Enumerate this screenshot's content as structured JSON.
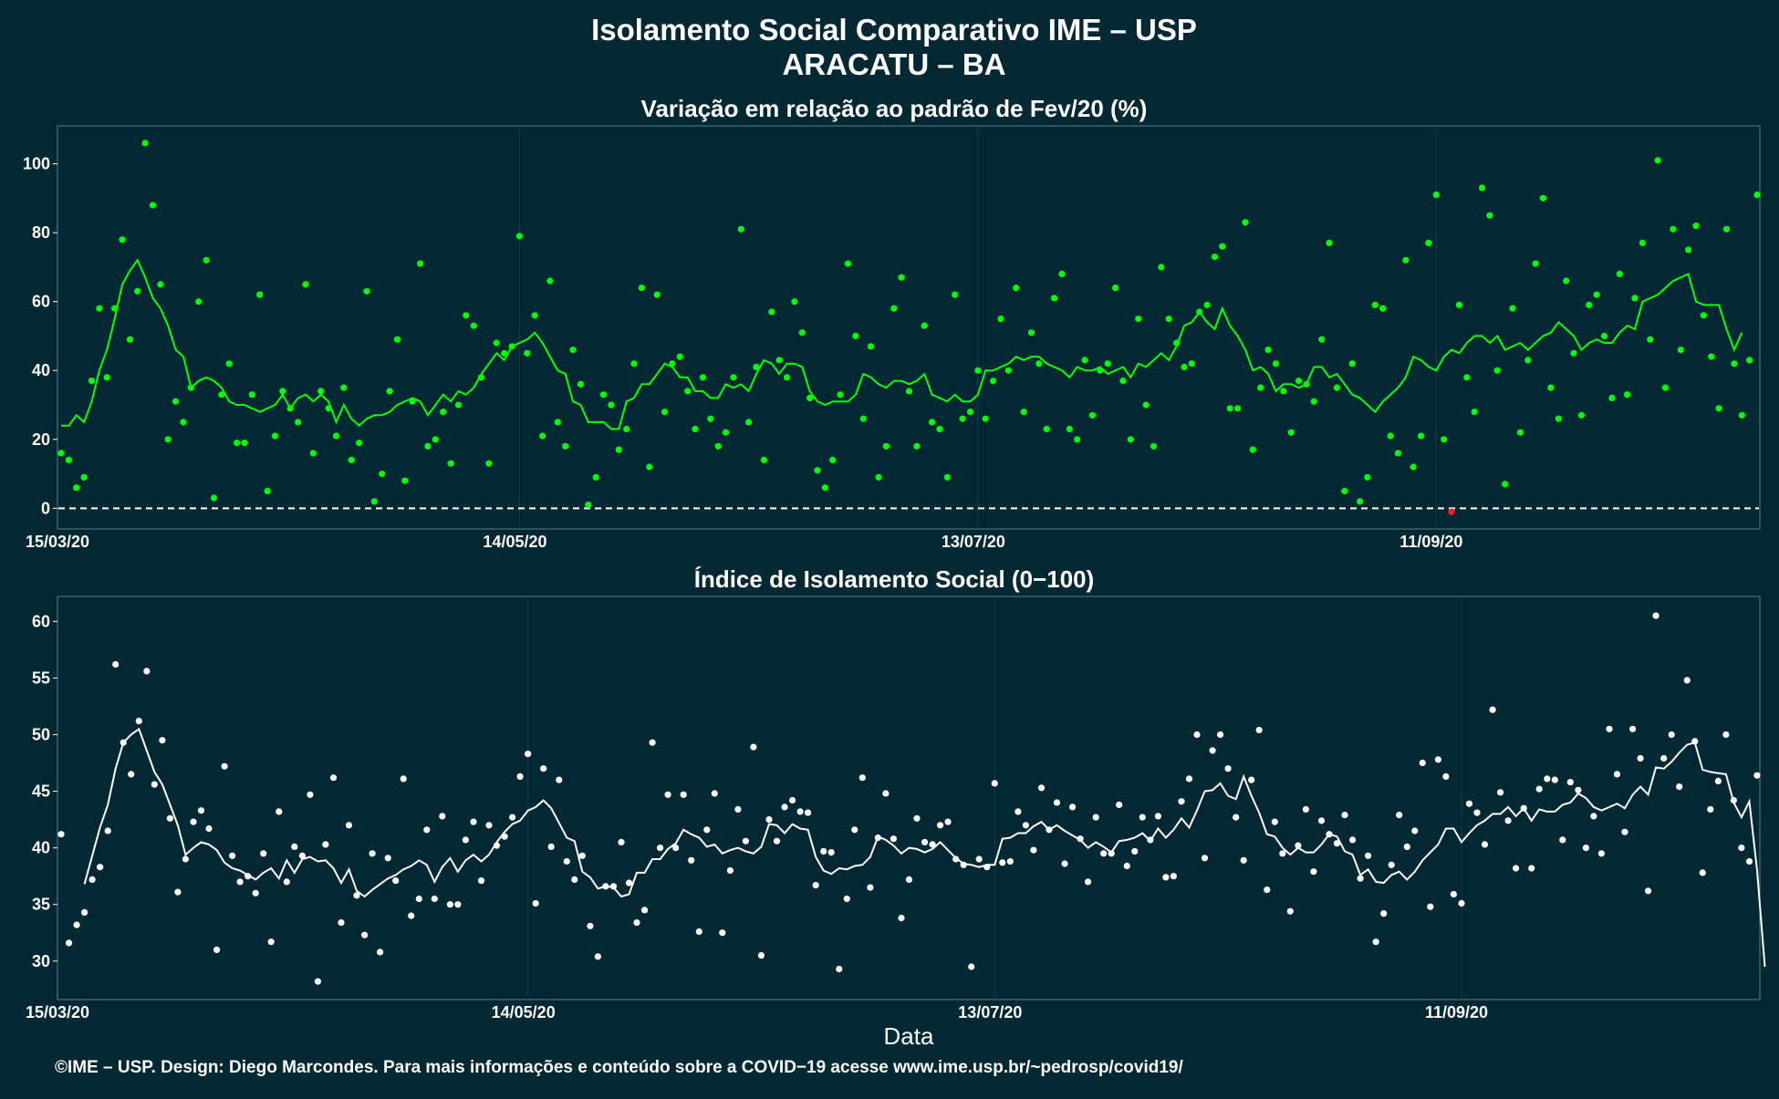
{
  "title_line1": "Isolamento Social Comparativo IME – USP",
  "title_line2": "ARACATU – BA",
  "xlabel": "Data",
  "footer": "©IME – USP. Design: Diego Marcondes. Para mais informações e conteúdo sobre a COVID−19 acesse www.ime.usp.br/~pedrosp/covid19/",
  "colors": {
    "background": "#022833",
    "top_series": "#00ff00",
    "top_negative": "#ff2020",
    "bottom_series": "#ffffff"
  },
  "chart_data": [
    {
      "type": "scatter",
      "title": "Variação em relação ao padrão de Fev/20 (%)",
      "x_start": "15/03/20",
      "x_end": "16/10/20",
      "x_ticks": [
        "15/03/20",
        "14/05/20",
        "13/07/20",
        "11/09/20"
      ],
      "y_ticks": [
        0,
        20,
        40,
        60,
        80,
        100
      ],
      "ylim": [
        -6,
        111
      ],
      "reference_line_y": 0,
      "series": [
        {
          "kind": "points",
          "values": [
            16,
            14,
            6,
            9,
            37,
            58,
            38,
            58,
            78,
            49,
            63,
            106,
            88,
            65,
            20,
            31,
            25,
            35,
            60,
            72,
            3,
            33,
            42,
            19,
            19,
            33,
            62,
            5,
            21,
            34,
            29,
            25,
            65,
            16,
            34,
            29,
            21,
            35,
            14,
            19,
            63,
            2,
            10,
            34,
            49,
            8,
            31,
            71,
            18,
            20,
            28,
            13,
            30,
            56,
            53,
            38,
            13,
            48,
            45,
            47,
            79,
            45,
            56,
            21,
            66,
            25,
            18,
            46,
            36,
            1,
            9,
            33,
            30,
            17,
            23,
            42,
            64,
            12,
            62,
            28,
            42,
            44,
            34,
            23,
            38,
            26,
            18,
            22,
            38,
            81,
            25,
            41,
            14,
            57,
            43,
            38,
            60,
            51,
            32,
            11,
            6,
            14,
            33,
            71,
            50,
            26,
            47,
            9,
            18,
            58,
            67,
            34,
            18,
            53,
            25,
            23,
            9,
            62,
            26,
            28,
            40,
            26,
            37,
            55,
            40,
            64,
            28,
            51,
            42,
            23,
            61,
            68,
            23,
            20,
            43,
            27,
            40,
            42,
            64,
            37,
            20,
            55,
            30,
            18,
            70,
            55,
            48,
            41,
            42,
            57,
            59,
            73,
            76,
            29,
            29,
            83,
            17,
            35,
            46,
            42,
            34,
            22,
            37,
            36,
            31,
            49,
            77,
            35,
            5,
            42,
            2,
            9,
            59,
            58,
            21,
            16,
            72,
            12,
            21,
            77,
            91,
            20,
            -1,
            59,
            38,
            28,
            93,
            85,
            40,
            7,
            58,
            22,
            43,
            71,
            90,
            35,
            26,
            66,
            45,
            27,
            59,
            62,
            50,
            32,
            68,
            33,
            61,
            77,
            49,
            101,
            35,
            81,
            46,
            75,
            82,
            56,
            44,
            29,
            81,
            42,
            27,
            43,
            91
          ]
        },
        {
          "kind": "moving_average",
          "values": [
            24,
            24,
            27,
            25,
            31,
            40,
            46,
            55,
            65,
            69,
            72,
            67,
            61,
            58,
            53,
            46,
            44,
            35,
            37,
            38,
            37,
            35,
            31,
            30,
            30,
            29,
            28,
            29,
            30,
            33,
            29,
            32,
            33,
            31,
            33,
            31,
            25,
            30,
            26,
            24,
            26,
            27,
            27,
            28,
            30,
            31,
            32,
            31,
            27,
            30,
            33,
            31,
            34,
            33,
            35,
            39,
            42,
            45,
            43,
            47,
            48,
            49,
            51,
            48,
            44,
            40,
            39,
            31,
            30,
            25,
            25,
            25,
            23,
            23,
            31,
            32,
            36,
            36,
            39,
            42,
            41,
            38,
            38,
            34,
            34,
            32,
            32,
            36,
            35,
            36,
            34,
            39,
            43,
            42,
            39,
            42,
            42,
            41,
            34,
            31,
            30,
            31,
            31,
            31,
            33,
            39,
            38,
            36,
            35,
            37,
            37,
            36,
            37,
            39,
            33,
            32,
            31,
            33,
            31,
            31,
            33,
            40,
            40,
            41,
            42,
            44,
            43,
            44,
            44,
            42,
            41,
            40,
            38,
            41,
            40,
            40,
            41,
            39,
            40,
            41,
            38,
            42,
            41,
            43,
            45,
            43,
            47,
            53,
            54,
            57,
            54,
            52,
            58,
            53,
            50,
            46,
            40,
            41,
            39,
            34,
            36,
            36,
            35,
            36,
            41,
            41,
            38,
            39,
            36,
            33,
            32,
            30,
            28,
            31,
            33,
            35,
            38,
            44,
            43,
            41,
            40,
            44,
            46,
            45,
            48,
            50,
            50,
            48,
            50,
            46,
            47,
            48,
            46,
            48,
            50,
            51,
            54,
            52,
            50,
            46,
            48,
            49,
            48,
            48,
            51,
            53,
            52,
            60,
            61,
            62,
            64,
            66,
            67,
            68,
            60,
            59,
            59,
            59,
            52,
            46,
            51
          ]
        }
      ]
    },
    {
      "type": "scatter",
      "title": "Índice de Isolamento Social (0−100)",
      "x_start": "15/03/20",
      "x_end": "16/10/20",
      "x_ticks": [
        "15/03/20",
        "14/05/20",
        "13/07/20",
        "11/09/20"
      ],
      "y_ticks": [
        30,
        35,
        40,
        45,
        50,
        55,
        60
      ],
      "ylim": [
        26.6,
        62.2
      ],
      "series": [
        {
          "kind": "points",
          "values": [
            41.2,
            31.6,
            33.2,
            34.3,
            37.2,
            38.3,
            41.5,
            56.2,
            49.3,
            46.5,
            51.2,
            55.6,
            45.6,
            49.5,
            42.6,
            36.1,
            39.0,
            42.3,
            43.3,
            41.7,
            31.0,
            47.2,
            39.3,
            37.0,
            37.5,
            36.0,
            39.5,
            31.7,
            43.2,
            37.0,
            40.1,
            39.3,
            44.7,
            28.2,
            40.3,
            46.2,
            33.4,
            42.0,
            35.8,
            32.3,
            39.5,
            30.8,
            39.1,
            37.1,
            46.1,
            34.0,
            35.5,
            41.6,
            35.5,
            42.8,
            35.0,
            35.0,
            40.7,
            42.3,
            37.1,
            42.0,
            40.2,
            41.0,
            42.7,
            46.3,
            48.3,
            35.1,
            47.0,
            40.1,
            46.0,
            38.8,
            37.2,
            39.3,
            33.1,
            30.4,
            36.6,
            36.6,
            40.5,
            36.9,
            33.4,
            34.5,
            49.3,
            40.0,
            44.7,
            40.0,
            44.7,
            38.9,
            32.6,
            41.6,
            44.8,
            32.5,
            38.0,
            43.4,
            40.6,
            48.9,
            30.5,
            42.5,
            40.6,
            43.6,
            44.2,
            43.2,
            43.1,
            36.7,
            39.7,
            39.6,
            29.3,
            35.5,
            41.6,
            46.2,
            36.5,
            40.9,
            44.8,
            40.8,
            33.8,
            37.2,
            42.6,
            40.5,
            40.3,
            42.0,
            42.3,
            39.0,
            38.5,
            29.5,
            39.0,
            38.3,
            45.7,
            38.7,
            38.8,
            43.2,
            42.0,
            39.8,
            45.3,
            41.6,
            44.0,
            38.6,
            43.6,
            40.8,
            37.0,
            42.7,
            39.5,
            39.5,
            43.8,
            38.4,
            39.7,
            42.7,
            40.7,
            42.8,
            37.4,
            37.5,
            44.1,
            46.1,
            50.0,
            39.1,
            48.6,
            50.0,
            47.0,
            42.7,
            38.9,
            46.0,
            50.4,
            36.3,
            42.3,
            39.5,
            34.4,
            40.2,
            43.4,
            37.9,
            42.4,
            41.2,
            40.4,
            42.9,
            40.7,
            37.3,
            39.3,
            31.7,
            34.2,
            38.5,
            42.9,
            40.1,
            41.5,
            47.5,
            34.8,
            47.8,
            46.3,
            35.9,
            35.1,
            43.9,
            43.1,
            40.3,
            52.2,
            44.9,
            42.4,
            38.2,
            43.5,
            38.2,
            45.2,
            46.1,
            46.0,
            40.7,
            45.8,
            45.1,
            40.0,
            42.8,
            39.5,
            50.5,
            46.5,
            41.4,
            50.5,
            47.9,
            36.2,
            60.5,
            47.9,
            50.0,
            45.4,
            54.8,
            49.4,
            37.8,
            43.4,
            45.9,
            50.0,
            44.2,
            40.0,
            38.8,
            46.4
          ]
        },
        {
          "kind": "moving_average",
          "values": [
            null,
            null,
            null,
            36.8,
            39.3,
            41.8,
            43.8,
            47.0,
            49.3,
            50.0,
            50.5,
            48.6,
            46.7,
            45.6,
            43.8,
            42.0,
            39.4,
            40.0,
            40.5,
            40.3,
            39.8,
            38.7,
            38.2,
            38.0,
            37.6,
            37.2,
            37.8,
            38.2,
            37.3,
            38.9,
            37.8,
            39.0,
            39.2,
            38.8,
            38.9,
            38.2,
            36.9,
            38.1,
            36.2,
            35.7,
            36.3,
            36.8,
            37.3,
            37.6,
            38.1,
            38.4,
            38.9,
            38.5,
            37.0,
            38.3,
            39.1,
            37.9,
            38.9,
            39.4,
            38.8,
            39.4,
            40.5,
            41.4,
            42.1,
            42.4,
            43.3,
            43.6,
            44.2,
            43.5,
            42.2,
            40.9,
            40.6,
            37.9,
            37.4,
            36.4,
            36.6,
            36.5,
            35.7,
            35.9,
            37.8,
            37.8,
            39.0,
            39.0,
            39.9,
            40.4,
            41.6,
            41.2,
            40.9,
            40.1,
            40.3,
            39.5,
            39.8,
            40.0,
            39.7,
            39.5,
            40.1,
            42.1,
            42.0,
            41.3,
            42.1,
            41.7,
            41.6,
            39.2,
            38.0,
            37.7,
            38.2,
            38.1,
            38.4,
            38.5,
            39.2,
            41.0,
            40.7,
            40.2,
            39.5,
            40.0,
            39.9,
            39.6,
            39.9,
            40.5,
            39.8,
            39.1,
            38.6,
            38.5,
            38.3,
            38.5,
            38.5,
            40.8,
            40.9,
            41.3,
            41.3,
            41.9,
            42.3,
            41.6,
            42.0,
            41.5,
            41.1,
            40.7,
            40.0,
            40.5,
            40.1,
            39.6,
            40.6,
            40.7,
            40.9,
            41.3,
            40.6,
            41.7,
            40.9,
            41.6,
            42.6,
            41.8,
            43.3,
            45.0,
            45.1,
            45.7,
            44.6,
            44.3,
            46.3,
            44.6,
            43.1,
            41.2,
            41.0,
            40.0,
            39.4,
            40.0,
            39.6,
            39.6,
            40.3,
            41.2,
            41.0,
            39.7,
            39.4,
            37.6,
            38.1,
            37.0,
            36.9,
            37.6,
            37.9,
            37.2,
            37.9,
            38.9,
            39.6,
            40.3,
            41.7,
            41.7,
            40.5,
            41.3,
            42.0,
            42.4,
            43.0,
            43.0,
            43.6,
            42.8,
            43.5,
            42.4,
            43.4,
            43.2,
            43.2,
            43.8,
            44.0,
            44.8,
            44.4,
            43.6,
            43.3,
            43.6,
            43.9,
            43.5,
            44.7,
            45.4,
            44.7,
            47.1,
            47.0,
            47.6,
            48.4,
            49.1,
            49.3,
            46.9,
            46.7,
            46.6,
            46.5,
            44.0,
            42.7,
            44.1,
            38.0,
            29.5
          ]
        }
      ]
    }
  ]
}
